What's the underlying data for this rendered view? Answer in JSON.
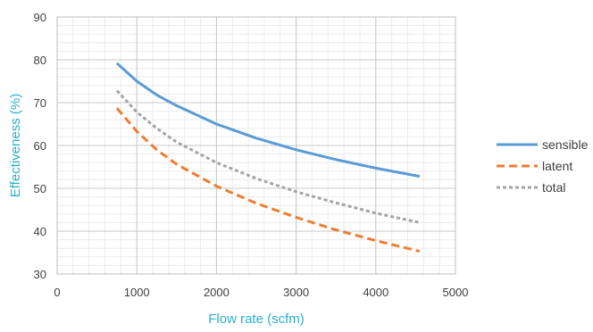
{
  "chart_data": {
    "type": "line",
    "title": "",
    "xlabel": "Flow rate (scfm)",
    "ylabel": "Effectiveness (%)",
    "xlim": [
      0,
      5000
    ],
    "ylim": [
      30,
      90
    ],
    "xticks": [
      0,
      1000,
      2000,
      3000,
      4000,
      5000
    ],
    "yticks": [
      30,
      40,
      50,
      60,
      70,
      80,
      90
    ],
    "grid": true,
    "legend_position": "right",
    "series": [
      {
        "name": "sensible",
        "color": "#5b9bd5",
        "style": "solid",
        "x": [
          750,
          1000,
          1250,
          1500,
          2000,
          2500,
          3000,
          3500,
          4000,
          4550
        ],
        "y": [
          79.2,
          75.0,
          71.8,
          69.3,
          65.0,
          61.7,
          59.0,
          56.7,
          54.7,
          52.8
        ]
      },
      {
        "name": "latent",
        "color": "#ed7d31",
        "style": "dashed",
        "x": [
          750,
          1000,
          1250,
          1500,
          2000,
          2500,
          3000,
          3500,
          4000,
          4550
        ],
        "y": [
          68.7,
          63.3,
          59.0,
          55.6,
          50.5,
          46.5,
          43.2,
          40.3,
          37.8,
          35.3
        ]
      },
      {
        "name": "total",
        "color": "#a5a5a5",
        "style": "dotted",
        "x": [
          750,
          1000,
          1250,
          1500,
          2000,
          2500,
          3000,
          3500,
          4000,
          4550
        ],
        "y": [
          72.8,
          67.8,
          64.0,
          60.8,
          56.0,
          52.3,
          49.2,
          46.6,
          44.2,
          42.0
        ]
      }
    ]
  }
}
